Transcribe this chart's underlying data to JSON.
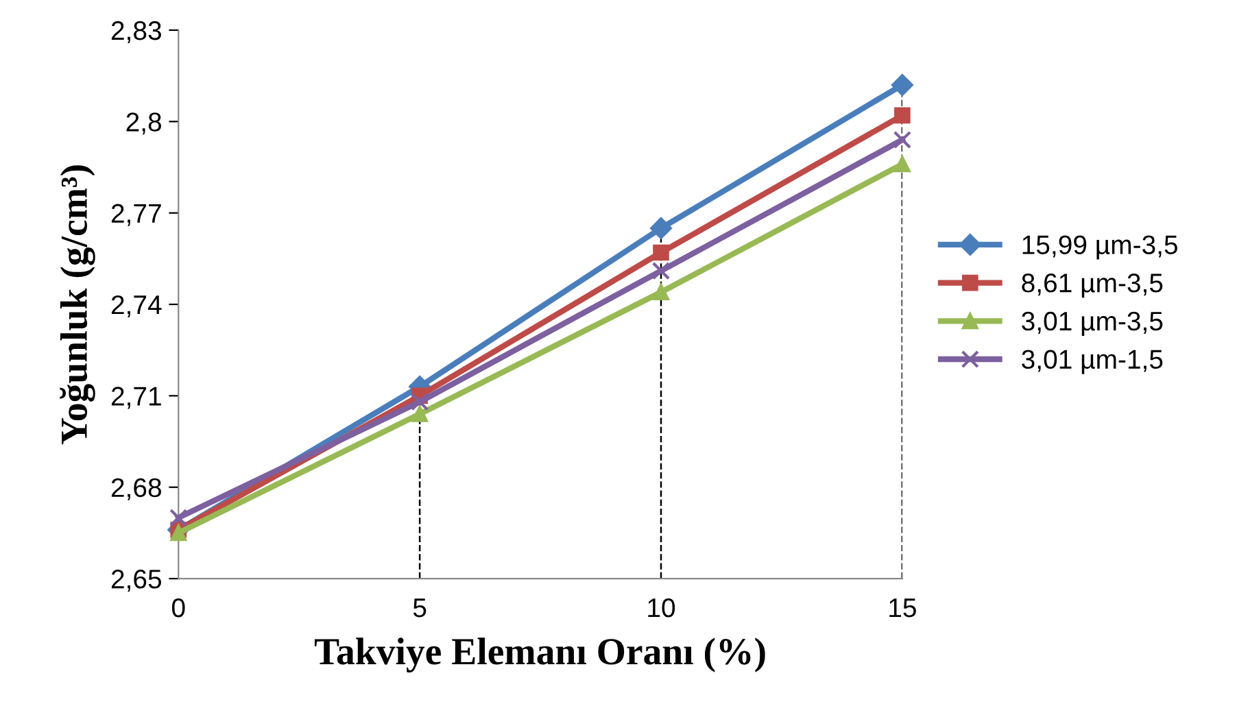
{
  "chart_data": {
    "type": "line",
    "xlabel": "Takviye Elemanı Oranı (%)",
    "ylabel": "Yoğunluk (g/cm³)",
    "x": [
      0,
      5,
      10,
      15
    ],
    "series": [
      {
        "name": "15,99 µm-3,5",
        "color": "#4a7ebb",
        "marker": "diamond",
        "values": [
          2.666,
          2.713,
          2.765,
          2.812
        ]
      },
      {
        "name": "8,61 µm-3,5",
        "color": "#be4b48",
        "marker": "square",
        "values": [
          2.666,
          2.71,
          2.757,
          2.802
        ]
      },
      {
        "name": "3,01 µm-3,5",
        "color": "#98b954",
        "marker": "triangle",
        "values": [
          2.665,
          2.704,
          2.744,
          2.786
        ]
      },
      {
        "name": "3,01 µm-1,5",
        "color": "#7d60a0",
        "marker": "cross",
        "values": [
          2.67,
          2.708,
          2.751,
          2.794
        ]
      }
    ],
    "xlim": [
      0,
      15
    ],
    "xticks": [
      0,
      5,
      10,
      15
    ],
    "ylim": [
      2.65,
      2.83
    ],
    "yticks": [
      {
        "value": 2.65,
        "label": "2,65"
      },
      {
        "value": 2.68,
        "label": "2,68"
      },
      {
        "value": 2.71,
        "label": "2,71"
      },
      {
        "value": 2.74,
        "label": "2,74"
      },
      {
        "value": 2.77,
        "label": "2,77"
      },
      {
        "value": 2.8,
        "label": "2,8"
      },
      {
        "value": 2.83,
        "label": "2,83"
      }
    ],
    "ref_lines": [
      {
        "axis": "x",
        "value": 5,
        "color": "#000000",
        "line_style": "dashed"
      },
      {
        "axis": "x",
        "value": 10,
        "color": "#000000",
        "line_style": "dashed"
      },
      {
        "axis": "x",
        "value": 15,
        "color": "#000000",
        "line_style": "dashed"
      }
    ],
    "grid": false,
    "legend": "right",
    "line_style": "solid"
  }
}
